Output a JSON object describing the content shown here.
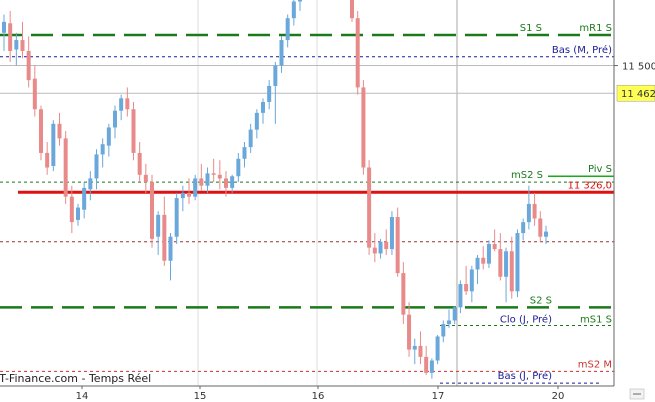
{
  "chart_data": {
    "type": "candlestick",
    "source_label": "IT-Finance.com - Temps Réel",
    "x_ticks": [
      "14",
      "15",
      "16",
      "17",
      "20"
    ],
    "y_ticks": [
      {
        "value": 11500,
        "label": "11 500"
      }
    ],
    "ylim": [
      11060,
      11590
    ],
    "current_price": {
      "value": 11462,
      "label": "11 462",
      "bg": "#ffff55"
    },
    "candles_session1": [
      [
        11545,
        11570,
        11520,
        11560
      ],
      [
        11558,
        11575,
        11505,
        11520
      ],
      [
        11522,
        11545,
        11500,
        11535
      ],
      [
        11535,
        11560,
        11510,
        11520
      ],
      [
        11520,
        11540,
        11470,
        11480
      ],
      [
        11482,
        11500,
        11430,
        11440
      ],
      [
        11440,
        11445,
        11370,
        11380
      ],
      [
        11380,
        11395,
        11350,
        11360
      ],
      [
        11362,
        11425,
        11355,
        11420
      ],
      [
        11420,
        11435,
        11390,
        11400
      ],
      [
        11400,
        11410,
        11310,
        11320
      ],
      [
        11320,
        11335,
        11270,
        11285
      ],
      [
        11288,
        11310,
        11280,
        11305
      ],
      [
        11302,
        11340,
        11290,
        11332
      ],
      [
        11330,
        11355,
        11315,
        11345
      ],
      [
        11345,
        11385,
        11330,
        11378
      ],
      [
        11378,
        11400,
        11360,
        11392
      ],
      [
        11390,
        11420,
        11375,
        11415
      ],
      [
        11415,
        11445,
        11400,
        11438
      ],
      [
        11438,
        11460,
        11425,
        11455
      ],
      [
        11455,
        11470,
        11430,
        11440
      ],
      [
        11440,
        11450,
        11370,
        11380
      ],
      [
        11380,
        11395,
        11340,
        11350
      ],
      [
        11350,
        11365,
        11325,
        11340
      ],
      [
        11340,
        11350,
        11250,
        11262
      ],
      [
        11265,
        11300,
        11240,
        11295
      ],
      [
        11295,
        11320,
        11225,
        11232
      ],
      [
        11232,
        11270,
        11205,
        11265
      ],
      [
        11265,
        11325,
        11255,
        11318
      ],
      [
        11318,
        11335,
        11300,
        11325
      ],
      [
        11325,
        11345,
        11310,
        11320
      ],
      [
        11320,
        11350,
        11315,
        11345
      ],
      [
        11345,
        11365,
        11328,
        11335
      ],
      [
        11335,
        11360,
        11325,
        11352
      ],
      [
        11352,
        11372,
        11340,
        11350
      ],
      [
        11350,
        11370,
        11330,
        11345
      ],
      [
        11345,
        11355,
        11320,
        11332
      ],
      [
        11332,
        11350,
        11325,
        11348
      ],
      [
        11348,
        11380,
        11340,
        11372
      ],
      [
        11372,
        11395,
        11360,
        11388
      ],
      [
        11388,
        11420,
        11380,
        11412
      ],
      [
        11412,
        11440,
        11400,
        11435
      ],
      [
        11435,
        11455,
        11420,
        11450
      ],
      [
        11450,
        11480,
        11440,
        11472
      ],
      [
        11472,
        11505,
        11420,
        11500
      ],
      [
        11500,
        11540,
        11490,
        11535
      ],
      [
        11535,
        11570,
        11525,
        11565
      ],
      [
        11565,
        11592,
        11555,
        11588
      ],
      [
        11588,
        11592,
        11575,
        11590
      ]
    ],
    "candles_session2": [
      [
        11590,
        11592,
        11560,
        11565
      ],
      [
        11565,
        11575,
        11460,
        11470
      ],
      [
        11470,
        11480,
        11350,
        11360
      ],
      [
        11360,
        11370,
        11240,
        11250
      ],
      [
        11250,
        11270,
        11230,
        11242
      ],
      [
        11242,
        11262,
        11235,
        11258
      ],
      [
        11258,
        11275,
        11240,
        11248
      ],
      [
        11248,
        11300,
        11240,
        11292
      ],
      [
        11292,
        11305,
        11210,
        11215
      ],
      [
        11215,
        11230,
        11145,
        11158
      ],
      [
        11158,
        11175,
        11100,
        11110
      ],
      [
        11110,
        11125,
        11090,
        11115
      ],
      [
        11115,
        11135,
        11090,
        11100
      ],
      [
        11100,
        11115,
        11075,
        11078
      ],
      [
        11078,
        11098,
        11070,
        11095
      ],
      [
        11095,
        11130,
        11090,
        11128
      ],
      [
        11128,
        11150,
        11120,
        11145
      ],
      [
        11145,
        11165,
        11140,
        11150
      ],
      [
        11150,
        11170,
        11145,
        11168
      ],
      [
        11168,
        11205,
        11160,
        11200
      ],
      [
        11200,
        11225,
        11185,
        11190
      ],
      [
        11190,
        11225,
        11175,
        11220
      ],
      [
        11220,
        11240,
        11200,
        11236
      ],
      [
        11236,
        11252,
        11220,
        11228
      ],
      [
        11228,
        11260,
        11222,
        11255
      ],
      [
        11255,
        11275,
        11245,
        11248
      ],
      [
        11248,
        11270,
        11205,
        11210
      ],
      [
        11210,
        11250,
        11175,
        11245
      ],
      [
        11245,
        11265,
        11180,
        11190
      ],
      [
        11190,
        11275,
        11182,
        11270
      ],
      [
        11270,
        11290,
        11260,
        11285
      ],
      [
        11285,
        11335,
        11275,
        11310
      ],
      [
        11310,
        11325,
        11280,
        11290
      ],
      [
        11290,
        11300,
        11258,
        11265
      ],
      [
        11265,
        11280,
        11255,
        11272
      ]
    ],
    "levels": [
      {
        "name": "S1 S",
        "value": 11542,
        "color": "#1a7a1a",
        "style": "long-dash",
        "width": 2.5,
        "label_pos": "top-right"
      },
      {
        "name": "mR1 S",
        "value": 11542,
        "color": "#1a7a1a",
        "style": "none",
        "width": 0,
        "label_pos": "right"
      },
      {
        "name": "Bas (M, Pré)",
        "value": 11512,
        "color": "#1a1a99",
        "style": "dotted",
        "width": 1,
        "label_pos": "right"
      },
      {
        "name": "mS2 S",
        "value": 11340,
        "color": "#1a7a1a",
        "style": "dotted",
        "width": 1,
        "label_pos": "right"
      },
      {
        "name": "Piv S",
        "value": 11348,
        "color": "#1aaa1a",
        "style": "solid-short",
        "width": 1.5,
        "label_pos": "right"
      },
      {
        "name": "11 326,0",
        "value": 11326,
        "color": "#dd1111",
        "style": "solid",
        "width": 3,
        "label_pos": "right"
      },
      {
        "name": "",
        "value": 11258,
        "color": "#993333",
        "style": "dotted",
        "width": 1,
        "label_pos": "none"
      },
      {
        "name": "S2 S",
        "value": 11168,
        "color": "#1a7a1a",
        "style": "long-dash",
        "width": 2.5,
        "label_pos": "right"
      },
      {
        "name": "Clo (J, Pré)",
        "value": 11143,
        "color": "#1a1a99",
        "style": "dotted-short",
        "width": 1,
        "label_pos": "right"
      },
      {
        "name": "mS1 S",
        "value": 11143,
        "color": "#1a7a1a",
        "style": "dotted",
        "width": 1,
        "label_pos": "right"
      },
      {
        "name": "mS2 M",
        "value": 11080,
        "color": "#cc3333",
        "style": "dotted",
        "width": 1,
        "label_pos": "right"
      },
      {
        "name": "Bas (J, Pré)",
        "value": 11064,
        "color": "#1a1a99",
        "style": "dotted-short",
        "width": 1,
        "label_pos": "right"
      }
    ],
    "colors": {
      "up": "#6aa8dc",
      "down": "#e88a8a",
      "grid": "#cccccc",
      "axis": "#888888"
    }
  }
}
